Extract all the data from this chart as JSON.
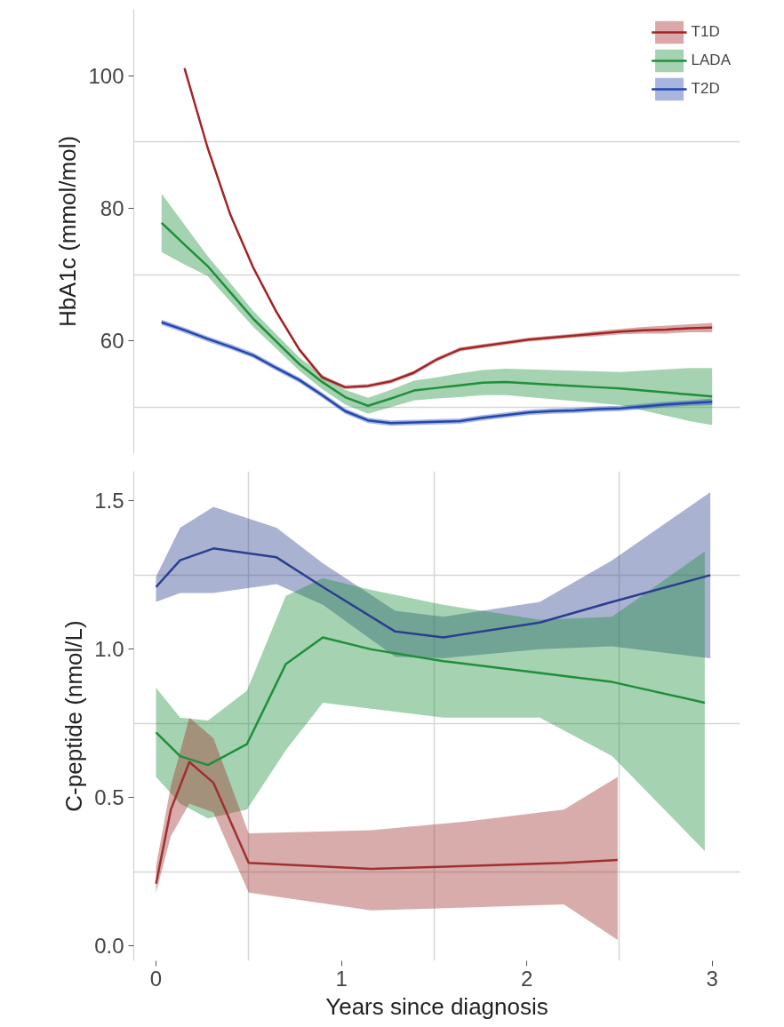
{
  "chart_data": [
    {
      "type": "line",
      "ylabel": "HbA1c (mmol/mol)",
      "ylim": [
        43,
        110
      ],
      "categories": [
        null,
        null,
        null,
        null,
        null,
        null,
        null,
        null,
        null,
        null,
        null,
        null,
        null,
        null,
        null,
        null,
        null,
        null,
        null,
        null,
        null,
        null,
        null,
        null,
        null
      ],
      "yticks": [
        {
          "value": 50,
          "label": null
        },
        60,
        {
          "value": 70,
          "label": null
        },
        80,
        {
          "value": 90,
          "label": null
        },
        100
      ],
      "tick_labels": "y",
      "grid": "y",
      "legend": "top right",
      "series": [
        {
          "name": "T1D",
          "color": "#a32525",
          "values": [
            null,
            101.1,
            89.2,
            79.0,
            71.0,
            64.4,
            58.7,
            54.5,
            53.0,
            53.2,
            53.9,
            55.2,
            57.2,
            58.7,
            59.2,
            59.7,
            60.2,
            60.5,
            60.8,
            61.1,
            61.4,
            61.6,
            61.7,
            61.9,
            62.0
          ],
          "lower": [
            null,
            100.8,
            88.9,
            78.7,
            70.7,
            64.1,
            58.4,
            54.2,
            52.7,
            52.9,
            53.6,
            54.9,
            56.9,
            58.4,
            58.9,
            59.4,
            59.9,
            60.2,
            60.5,
            60.7,
            61.0,
            61.1,
            61.1,
            61.3,
            61.3
          ],
          "upper": [
            null,
            101.4,
            89.5,
            79.3,
            71.3,
            64.7,
            59.0,
            54.8,
            53.3,
            53.5,
            54.2,
            55.5,
            57.5,
            59.0,
            59.5,
            60.0,
            60.5,
            60.8,
            61.1,
            61.5,
            61.8,
            62.1,
            62.3,
            62.5,
            62.7
          ]
        },
        {
          "name": "LADA",
          "color": "#1e8f3a",
          "values": [
            77.8,
            74.5,
            71.3,
            67.3,
            63.3,
            59.9,
            56.5,
            53.8,
            51.5,
            50.2,
            51.3,
            52.5,
            52.9,
            53.3,
            53.7,
            53.8,
            53.6,
            53.4,
            53.2,
            53.0,
            52.8,
            52.5,
            52.2,
            51.9,
            51.6
          ],
          "lower": [
            73.4,
            71.5,
            69.8,
            65.9,
            62.1,
            58.8,
            55.5,
            52.7,
            50.4,
            49.0,
            50.0,
            51.0,
            51.3,
            51.5,
            51.8,
            51.8,
            51.5,
            51.2,
            50.9,
            50.6,
            50.3,
            49.5,
            48.7,
            47.9,
            47.3
          ],
          "upper": [
            82.2,
            77.5,
            72.8,
            68.7,
            64.5,
            61.0,
            57.5,
            54.9,
            52.6,
            51.4,
            52.6,
            54.0,
            54.5,
            55.1,
            55.6,
            55.8,
            55.7,
            55.6,
            55.5,
            55.4,
            55.3,
            55.5,
            55.7,
            55.9,
            55.9
          ]
        },
        {
          "name": "T2D",
          "color": "#2247b0",
          "values": [
            62.8,
            61.6,
            60.3,
            59.1,
            57.8,
            55.9,
            54.1,
            51.8,
            49.4,
            48.0,
            47.6,
            47.7,
            47.8,
            47.9,
            48.4,
            48.8,
            49.2,
            49.4,
            49.5,
            49.7,
            49.8,
            50.1,
            50.4,
            50.6,
            50.8
          ],
          "lower": [
            62.4,
            61.2,
            59.9,
            58.7,
            57.4,
            55.5,
            53.7,
            51.4,
            49.0,
            47.6,
            47.2,
            47.3,
            47.4,
            47.5,
            48.0,
            48.4,
            48.8,
            49.0,
            49.1,
            49.3,
            49.4,
            49.7,
            50.0,
            50.2,
            50.3
          ],
          "upper": [
            63.2,
            62.0,
            60.7,
            59.5,
            58.2,
            56.3,
            54.5,
            52.2,
            49.8,
            48.4,
            48.0,
            48.1,
            48.2,
            48.3,
            48.8,
            49.2,
            49.6,
            49.8,
            49.9,
            50.1,
            50.2,
            50.5,
            50.8,
            51.0,
            51.3
          ]
        }
      ]
    },
    {
      "type": "line",
      "xlabel": "Years since diagnosis",
      "ylabel": "C-peptide (nmol/L)",
      "xlim": [
        -0.12,
        3.15
      ],
      "ylim": [
        -0.05,
        1.6
      ],
      "xticks": [
        0,
        {
          "value": 0.5,
          "label": null
        },
        1,
        {
          "value": 1.5,
          "label": null
        },
        2,
        {
          "value": 2.5,
          "label": null
        },
        3
      ],
      "yticks": [
        {
          "value": 0,
          "label": "0.0"
        },
        {
          "value": 0.25,
          "label": null
        },
        0.5,
        {
          "value": 0.75,
          "label": null
        },
        {
          "value": 1,
          "label": "1.0"
        },
        {
          "value": 1.25,
          "label": null
        },
        1.5
      ],
      "grid": true,
      "series": [
        {
          "color": "#2a3f8f",
          "x": [
            0,
            0.13,
            0.31,
            0.65,
            0.9,
            1.29,
            1.55,
            2.07,
            2.46,
            2.99
          ],
          "values": [
            1.21,
            1.3,
            1.34,
            1.31,
            1.21,
            1.06,
            1.04,
            1.09,
            1.16,
            1.25
          ],
          "lower": [
            1.16,
            1.19,
            1.19,
            1.22,
            1.15,
            0.975,
            0.97,
            1.0,
            1.01,
            0.97
          ],
          "upper": [
            1.245,
            1.41,
            1.48,
            1.41,
            1.29,
            1.13,
            1.11,
            1.16,
            1.3,
            1.53
          ]
        },
        {
          "color": "#1e8f3a",
          "x": [
            0,
            0.13,
            0.28,
            0.49,
            0.7,
            0.9,
            1.16,
            1.55,
            2.07,
            2.46,
            2.96
          ],
          "values": [
            0.72,
            0.64,
            0.61,
            0.68,
            0.95,
            1.04,
            1.0,
            0.96,
            0.92,
            0.89,
            0.82
          ],
          "lower": [
            0.57,
            0.48,
            0.43,
            0.46,
            0.66,
            0.82,
            0.8,
            0.77,
            0.77,
            0.64,
            0.32
          ],
          "upper": [
            0.87,
            0.77,
            0.76,
            0.86,
            1.18,
            1.24,
            1.2,
            1.15,
            1.1,
            1.11,
            1.33
          ]
        },
        {
          "color": "#a03030",
          "x": [
            0,
            0.08,
            0.18,
            0.31,
            0.5,
            1.16,
            1.68,
            2.2,
            2.49
          ],
          "values": [
            0.21,
            0.46,
            0.62,
            0.55,
            0.28,
            0.26,
            0.27,
            0.28,
            0.29
          ],
          "lower": [
            0.18,
            0.37,
            0.48,
            0.45,
            0.18,
            0.12,
            0.13,
            0.14,
            0.02
          ],
          "upper": [
            0.27,
            0.54,
            0.77,
            0.7,
            0.38,
            0.39,
            0.42,
            0.46,
            0.57
          ]
        }
      ]
    }
  ]
}
